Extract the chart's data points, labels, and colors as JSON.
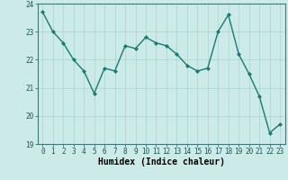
{
  "x": [
    0,
    1,
    2,
    3,
    4,
    5,
    6,
    7,
    8,
    9,
    10,
    11,
    12,
    13,
    14,
    15,
    16,
    17,
    18,
    19,
    20,
    21,
    22,
    23
  ],
  "y": [
    23.7,
    23.0,
    22.6,
    22.0,
    21.6,
    20.8,
    21.7,
    21.6,
    22.5,
    22.4,
    22.8,
    22.6,
    22.5,
    22.2,
    21.8,
    21.6,
    21.7,
    23.0,
    23.6,
    22.2,
    21.5,
    20.7,
    19.4,
    19.7
  ],
  "xlabel": "Humidex (Indice chaleur)",
  "ylim": [
    19,
    24
  ],
  "xlim": [
    -0.5,
    23.5
  ],
  "yticks": [
    19,
    20,
    21,
    22,
    23,
    24
  ],
  "xticks": [
    0,
    1,
    2,
    3,
    4,
    5,
    6,
    7,
    8,
    9,
    10,
    11,
    12,
    13,
    14,
    15,
    16,
    17,
    18,
    19,
    20,
    21,
    22,
    23
  ],
  "line_color": "#1a7a6e",
  "marker": "D",
  "marker_size": 2.0,
  "bg_color": "#cceae7",
  "grid_color": "#aad4d0",
  "line_width": 1.0,
  "tick_fontsize": 5.5,
  "xlabel_fontsize": 7.0
}
